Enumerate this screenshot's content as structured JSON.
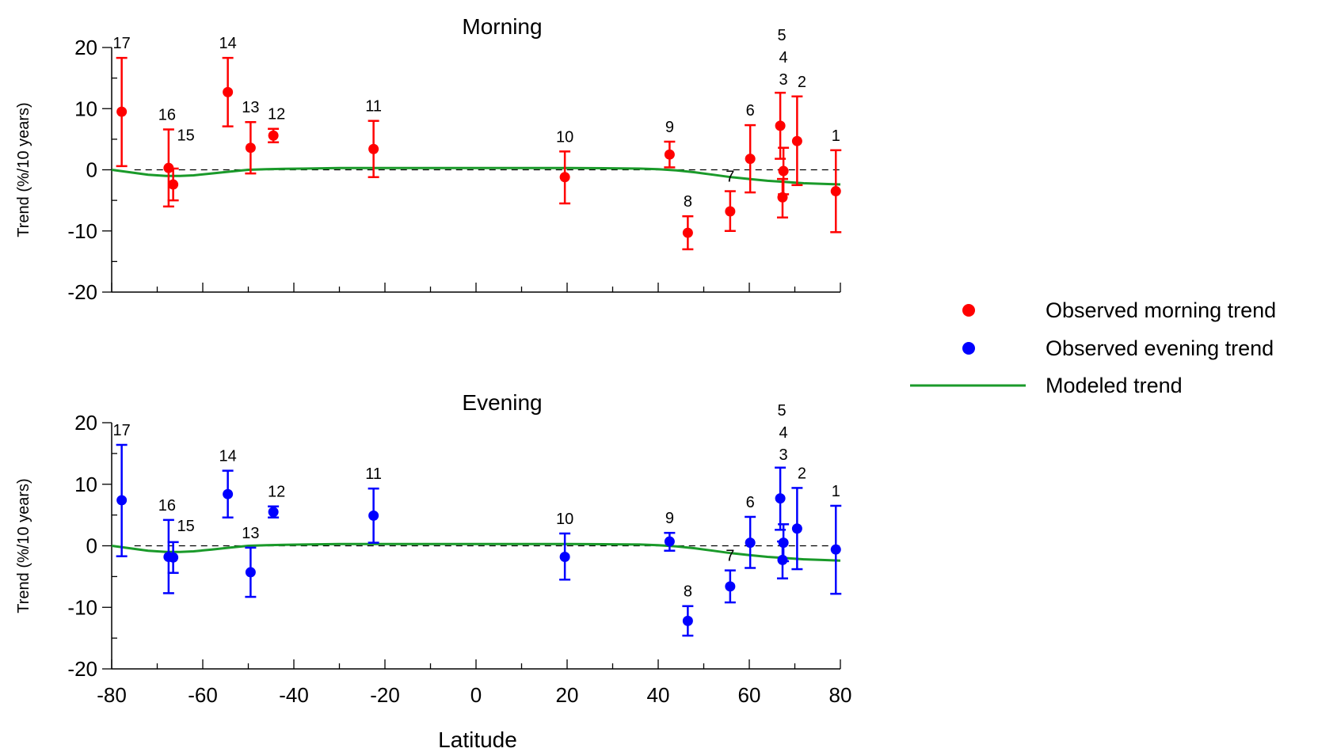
{
  "chart_data": {
    "type": "scatter",
    "xlabel": "Latitude",
    "xlim": [
      -80,
      80
    ],
    "x_ticks": [
      -80,
      -60,
      -40,
      -20,
      0,
      20,
      40,
      60,
      80
    ],
    "legend": {
      "placement": "right",
      "entries": [
        {
          "label": "Observed morning trend",
          "marker": "dot",
          "color": "#ff0000"
        },
        {
          "label": "Observed evening trend",
          "marker": "dot",
          "color": "#0000ff"
        },
        {
          "label": "Modeled trend",
          "marker": "line",
          "color": "#1a9a2a"
        }
      ]
    },
    "modeled_trend": {
      "name": "Modeled trend",
      "color": "#1a9a2a",
      "x": [
        -80,
        -76,
        -72,
        -68,
        -65,
        -62,
        -58,
        -54,
        -50,
        -46,
        -42,
        -38,
        -30,
        -20,
        -10,
        0,
        10,
        20,
        30,
        36,
        40,
        44,
        48,
        52,
        56,
        60,
        64,
        68,
        72,
        76,
        80
      ],
      "y": [
        0,
        -0.4,
        -0.8,
        -1.0,
        -1.0,
        -0.9,
        -0.6,
        -0.3,
        0,
        0.1,
        0.15,
        0.2,
        0.3,
        0.3,
        0.3,
        0.3,
        0.3,
        0.3,
        0.25,
        0.2,
        0.1,
        -0.1,
        -0.4,
        -0.8,
        -1.2,
        -1.5,
        -1.8,
        -2.0,
        -2.2,
        -2.3,
        -2.4
      ]
    },
    "panels": [
      {
        "title": "Morning",
        "ylabel": "Trend (%/10 years)",
        "ylim": [
          -20,
          20
        ],
        "y_ticks": [
          -20,
          -10,
          0,
          10,
          20
        ],
        "color": "#ff0000",
        "points": [
          {
            "label": "1",
            "x": 79,
            "y": -3.5,
            "low": -10.2,
            "high": 3.2
          },
          {
            "label": "2",
            "x": 70.5,
            "y": 4.7,
            "low": -2.5,
            "high": 12.0
          },
          {
            "label": "3",
            "x": 67.5,
            "y": -0.2,
            "low": -4.0,
            "high": 3.6
          },
          {
            "label": "4",
            "x": 67.3,
            "y": -4.5,
            "low": -7.8,
            "high": -1.5
          },
          {
            "label": "5",
            "x": 66.8,
            "y": 7.2,
            "low": 1.8,
            "high": 12.6
          },
          {
            "label": "6",
            "x": 60.2,
            "y": 1.8,
            "low": -3.7,
            "high": 7.3
          },
          {
            "label": "7",
            "x": 55.8,
            "y": -6.8,
            "low": -10.0,
            "high": -3.5
          },
          {
            "label": "8",
            "x": 46.5,
            "y": -10.3,
            "low": -13.0,
            "high": -7.6
          },
          {
            "label": "9",
            "x": 42.5,
            "y": 2.5,
            "low": 0.4,
            "high": 4.6
          },
          {
            "label": "10",
            "x": 19.5,
            "y": -1.2,
            "low": -5.5,
            "high": 3.0
          },
          {
            "label": "11",
            "x": -22.5,
            "y": 3.4,
            "low": -1.2,
            "high": 8.0
          },
          {
            "label": "12",
            "x": -44.5,
            "y": 5.6,
            "low": 4.5,
            "high": 6.7
          },
          {
            "label": "13",
            "x": -49.5,
            "y": 3.6,
            "low": -0.6,
            "high": 7.8
          },
          {
            "label": "14",
            "x": -54.5,
            "y": 12.7,
            "low": 7.1,
            "high": 18.3
          },
          {
            "label": "15",
            "x": -66.5,
            "y": -2.4,
            "low": -5.0,
            "high": 0.2
          },
          {
            "label": "16",
            "x": -67.5,
            "y": 0.3,
            "low": -6.0,
            "high": 6.6
          },
          {
            "label": "17",
            "x": -77.8,
            "y": 9.5,
            "low": 0.6,
            "high": 18.3
          }
        ]
      },
      {
        "title": "Evening",
        "ylabel": "Trend (%/10 years)",
        "ylim": [
          -20,
          20
        ],
        "y_ticks": [
          -20,
          -10,
          0,
          10,
          20
        ],
        "color": "#0000ff",
        "points": [
          {
            "label": "1",
            "x": 79,
            "y": -0.6,
            "low": -7.8,
            "high": 6.5
          },
          {
            "label": "2",
            "x": 70.5,
            "y": 2.8,
            "low": -3.8,
            "high": 9.4
          },
          {
            "label": "3",
            "x": 67.5,
            "y": 0.5,
            "low": -2.5,
            "high": 3.5
          },
          {
            "label": "4",
            "x": 67.3,
            "y": -2.3,
            "low": -5.3,
            "high": 0.7
          },
          {
            "label": "5",
            "x": 66.8,
            "y": 7.7,
            "low": 2.6,
            "high": 12.7
          },
          {
            "label": "6",
            "x": 60.2,
            "y": 0.5,
            "low": -3.6,
            "high": 4.7
          },
          {
            "label": "7",
            "x": 55.8,
            "y": -6.6,
            "low": -9.2,
            "high": -4.0
          },
          {
            "label": "8",
            "x": 46.5,
            "y": -12.2,
            "low": -14.6,
            "high": -9.8
          },
          {
            "label": "9",
            "x": 42.5,
            "y": 0.7,
            "low": -0.8,
            "high": 2.1
          },
          {
            "label": "10",
            "x": 19.5,
            "y": -1.8,
            "low": -5.5,
            "high": 2.0
          },
          {
            "label": "11",
            "x": -22.5,
            "y": 4.9,
            "low": 0.5,
            "high": 9.3
          },
          {
            "label": "12",
            "x": -44.5,
            "y": 5.5,
            "low": 4.6,
            "high": 6.4
          },
          {
            "label": "13",
            "x": -49.5,
            "y": -4.3,
            "low": -8.3,
            "high": -0.3
          },
          {
            "label": "14",
            "x": -54.5,
            "y": 8.4,
            "low": 4.6,
            "high": 12.2
          },
          {
            "label": "15",
            "x": -66.5,
            "y": -1.9,
            "low": -4.4,
            "high": 0.6
          },
          {
            "label": "16",
            "x": -67.5,
            "y": -1.8,
            "low": -7.7,
            "high": 4.2
          },
          {
            "label": "17",
            "x": -77.8,
            "y": 7.4,
            "low": -1.7,
            "high": 16.4
          }
        ]
      }
    ]
  }
}
